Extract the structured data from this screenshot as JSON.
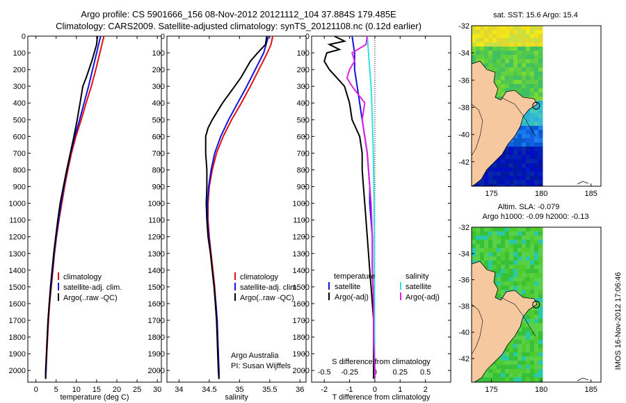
{
  "titles": {
    "line1": "Argo profile: CS 5901666_156 08-Nov-2012 20121112_104 37.884S 179.485E",
    "line2": "Climatology: CARS2009. Satellite-adjusted climatology: synTS_20121108.nc (0.12d earlier)"
  },
  "colors": {
    "climatology": "#e01010",
    "satellite": "#1010e0",
    "argo": "#000000",
    "sal_satellite": "#30e0e0",
    "sal_argo": "#e020e0",
    "land": "#f5c8a0"
  },
  "sidebar_stamp": "IMOS 16-Nov-2012 17:06:46",
  "chart_data": [
    {
      "type": "line",
      "name": "temperature-profile",
      "xlabel": "temperature (deg C)",
      "xlim": [
        -2,
        31
      ],
      "ylim": [
        2070,
        0
      ],
      "xticks": [
        0,
        5,
        10,
        15,
        20,
        25,
        30
      ],
      "yticks": [
        0,
        100,
        200,
        300,
        400,
        500,
        600,
        700,
        800,
        900,
        1000,
        1100,
        1200,
        1300,
        1400,
        1500,
        1600,
        1700,
        1800,
        1900,
        2000
      ],
      "legend": [
        "climatology",
        "satellite-adj. clim.",
        "Argo(..raw -QC)"
      ],
      "series": [
        {
          "name": "climatology",
          "depth": [
            0,
            50,
            100,
            200,
            300,
            400,
            500,
            600,
            700,
            800,
            900,
            1000,
            1100,
            1200,
            1300,
            1400,
            1500,
            1600,
            1700,
            1800,
            1900,
            2000,
            2050
          ],
          "values": [
            16.8,
            16.3,
            15.8,
            14.8,
            13.7,
            12.4,
            11.2,
            9.9,
            8.8,
            7.9,
            7.1,
            6.4,
            5.7,
            5.1,
            4.6,
            4.2,
            3.8,
            3.4,
            3.1,
            2.9,
            2.7,
            2.5,
            2.4
          ]
        },
        {
          "name": "satellite-adj. clim.",
          "depth": [
            0,
            50,
            100,
            200,
            300,
            400,
            500,
            600,
            700,
            800,
            900,
            1000,
            1100,
            1200,
            1300,
            1400,
            1500,
            1600,
            1700,
            1800,
            1900,
            2000,
            2050
          ],
          "values": [
            16.0,
            15.5,
            15.0,
            14.0,
            13.0,
            11.9,
            10.8,
            9.6,
            8.6,
            7.7,
            6.9,
            6.2,
            5.6,
            5.0,
            4.5,
            4.1,
            3.7,
            3.3,
            3.0,
            2.8,
            2.6,
            2.5,
            2.4
          ]
        },
        {
          "name": "Argo(..raw -QC)",
          "depth": [
            0,
            50,
            100,
            150,
            200,
            250,
            300,
            400,
            500,
            600,
            700,
            800,
            900,
            1000,
            1100,
            1200,
            1300,
            1400,
            1500,
            1600,
            1700,
            1800,
            1900,
            2000,
            2050
          ],
          "values": [
            15.2,
            15.0,
            14.4,
            13.8,
            13.1,
            12.4,
            11.6,
            10.9,
            10.2,
            9.4,
            8.5,
            7.6,
            6.8,
            6.0,
            5.4,
            4.9,
            4.4,
            4.0,
            3.6,
            3.3,
            3.0,
            2.8,
            2.6,
            2.4,
            2.4
          ]
        }
      ]
    },
    {
      "type": "line",
      "name": "salinity-profile",
      "xlabel": "salinity",
      "xlim": [
        33.8,
        36.1
      ],
      "ylim": [
        2070,
        0
      ],
      "xticks": [
        34,
        34.5,
        35,
        35.5,
        36
      ],
      "legend": [
        "climatology",
        "satellite-adj. clim.",
        "Argo(..raw -QC)"
      ],
      "annotation": [
        "Argo Australia",
        "PI: Susan Wijffels"
      ],
      "series": [
        {
          "name": "climatology",
          "depth": [
            0,
            50,
            100,
            200,
            300,
            400,
            500,
            600,
            700,
            800,
            900,
            1000,
            1100,
            1200,
            1300,
            1400,
            1500,
            1600,
            1700,
            1800,
            1900,
            2000,
            2050
          ],
          "values": [
            35.55,
            35.52,
            35.46,
            35.32,
            35.18,
            35.03,
            34.87,
            34.73,
            34.62,
            34.55,
            34.5,
            34.48,
            34.48,
            34.5,
            34.53,
            34.56,
            34.59,
            34.61,
            34.63,
            34.64,
            34.65,
            34.66,
            34.66
          ]
        },
        {
          "name": "satellite-adj. clim.",
          "depth": [
            0,
            50,
            100,
            200,
            300,
            400,
            500,
            600,
            700,
            800,
            900,
            1000,
            1100,
            1200,
            1300,
            1400,
            1500,
            1600,
            1700,
            1800,
            1900,
            2000,
            2050
          ],
          "values": [
            35.48,
            35.44,
            35.4,
            35.26,
            35.12,
            34.97,
            34.82,
            34.69,
            34.59,
            34.53,
            34.49,
            34.47,
            34.47,
            34.49,
            34.52,
            34.55,
            34.58,
            34.61,
            34.63,
            34.64,
            34.65,
            34.66,
            34.66
          ]
        },
        {
          "name": "Argo(..raw -QC)",
          "depth": [
            0,
            50,
            100,
            150,
            200,
            250,
            300,
            400,
            500,
            550,
            600,
            700,
            800,
            900,
            1000,
            1100,
            1200,
            1300,
            1400,
            1500,
            1600,
            1700,
            1800,
            1900,
            2000,
            2050
          ],
          "values": [
            35.45,
            35.43,
            35.3,
            35.18,
            35.1,
            35.02,
            34.92,
            34.72,
            34.55,
            34.48,
            34.44,
            34.44,
            34.46,
            34.46,
            34.45,
            34.46,
            34.48,
            34.52,
            34.55,
            34.58,
            34.6,
            34.62,
            34.63,
            34.64,
            34.65,
            34.66
          ]
        }
      ]
    },
    {
      "type": "line",
      "name": "difference-profile",
      "xlabel": "T difference from climatology",
      "xlabel_top": "S difference from climatology",
      "xlim": [
        -2.5,
        3
      ],
      "ylim": [
        2070,
        0
      ],
      "xticks": [
        -2,
        -1,
        0,
        1,
        2
      ],
      "xticks_salinity": [
        "-0.5",
        "-0.25",
        "0",
        "0.25",
        "0.5"
      ],
      "legend_temperature_title": "temperature",
      "legend_salinity_title": "salinity",
      "legend_temperature": [
        "satellite",
        "Argo(-adj)"
      ],
      "legend_salinity": [
        "satellite",
        "Argo(-adj)"
      ],
      "series": [
        {
          "name": "temperature satellite",
          "depth": [
            0,
            100,
            200,
            300,
            400,
            500,
            600,
            700,
            800,
            900,
            1000,
            1200,
            1400,
            1600,
            1800,
            2000,
            2050
          ],
          "values": [
            -0.9,
            -0.8,
            -0.8,
            -0.7,
            -0.6,
            -0.5,
            -0.4,
            -0.3,
            -0.25,
            -0.2,
            -0.2,
            -0.1,
            -0.1,
            -0.05,
            -0.05,
            0,
            0
          ]
        },
        {
          "name": "temperature Argo(-adj)",
          "depth": [
            0,
            30,
            50,
            80,
            100,
            150,
            200,
            250,
            300,
            400,
            500,
            600,
            700,
            800,
            900,
            1000,
            1100,
            1200,
            1300,
            1400,
            1500,
            1600,
            1700,
            1800,
            1900,
            2000,
            2050
          ],
          "values": [
            -1.6,
            -1.2,
            -1.8,
            -1.4,
            -1.9,
            -2.0,
            -1.8,
            -1.5,
            -1.2,
            -1.0,
            -0.9,
            -0.6,
            -0.5,
            -0.5,
            -0.45,
            -0.4,
            -0.35,
            -0.3,
            -0.25,
            -0.2,
            -0.15,
            -0.1,
            -0.05,
            -0.05,
            -0.05,
            -0.05,
            -0.05
          ]
        },
        {
          "name": "salinity satellite",
          "depth": [
            0,
            100,
            200,
            300,
            400,
            500,
            600,
            700,
            800,
            900,
            1000,
            1200,
            1400,
            1600,
            1800,
            2000,
            2050
          ],
          "values": [
            -0.3,
            -0.25,
            -0.2,
            -0.15,
            -0.12,
            -0.1,
            -0.08,
            -0.06,
            -0.05,
            -0.04,
            -0.03,
            -0.02,
            -0.02,
            -0.01,
            -0.01,
            0,
            0
          ]
        },
        {
          "name": "salinity Argo(-adj)",
          "depth": [
            0,
            50,
            100,
            150,
            200,
            250,
            300,
            400,
            500,
            600,
            700,
            800,
            900,
            1000,
            1200,
            1400,
            1600,
            1800,
            2000,
            2050
          ],
          "values": [
            -0.3,
            -0.35,
            -0.9,
            -0.8,
            -1.0,
            -1.1,
            -0.9,
            -0.4,
            -0.5,
            -0.4,
            -0.3,
            -0.25,
            -0.2,
            -0.15,
            -0.1,
            -0.1,
            -0.05,
            -0.05,
            0,
            0
          ]
        }
      ]
    },
    {
      "type": "heatmap",
      "name": "sst-map",
      "title": "sat. SST: 15.6  Argo: 15.4",
      "xlim": [
        173,
        186
      ],
      "ylim": [
        -43.8,
        -32
      ],
      "xticks": [
        175,
        180,
        185
      ],
      "yticks": [
        -32,
        -34,
        -36,
        -38,
        -40,
        -42
      ],
      "marker": [
        179.485,
        -37.884
      ]
    },
    {
      "type": "heatmap",
      "name": "sla-map",
      "title_line1": "Altim. SLA: -0.079",
      "title_line2": "Argo h1000: -0.09  h2000: -0.13",
      "xlim": [
        173,
        186
      ],
      "ylim": [
        -43.8,
        -32
      ],
      "xticks": [
        175,
        180,
        185
      ],
      "yticks": [
        -32,
        -34,
        -36,
        -38,
        -40,
        -42
      ],
      "marker": [
        179.485,
        -37.884
      ]
    }
  ]
}
